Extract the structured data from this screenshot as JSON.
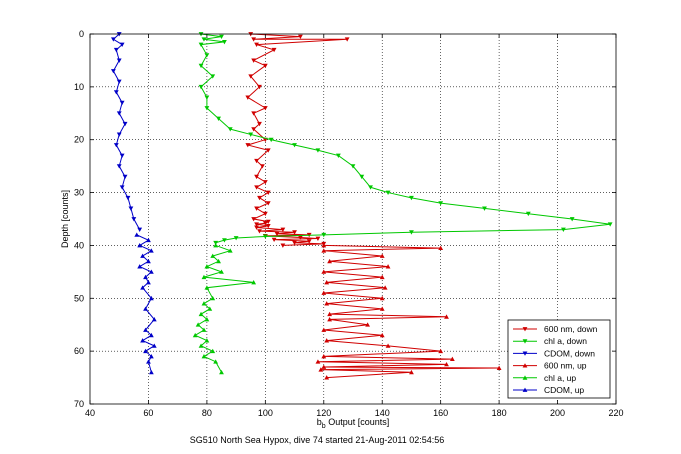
{
  "chart_data": {
    "type": "line",
    "title": "",
    "caption": "SG510 North Sea Hypox, dive 74 started 21-Aug-2011 02:54:56",
    "xlabel": "b",
    "xlabel_sub": "b",
    "xlabel_rest": " Output [counts]",
    "ylabel": "Depth [counts]",
    "xlim": [
      40,
      220
    ],
    "ylim": [
      0,
      70
    ],
    "y_reversed": true,
    "xticks": [
      40,
      60,
      80,
      100,
      120,
      140,
      160,
      180,
      200,
      220
    ],
    "yticks": [
      0,
      10,
      20,
      30,
      40,
      50,
      60,
      70
    ],
    "grid": true,
    "grid_style": "dotted",
    "legend_position": "bottom-right",
    "series": [
      {
        "name": "600 nm, down",
        "color": "#d00000",
        "marker": "v",
        "x": [
          95,
          112,
          96,
          128,
          97,
          103,
          96,
          100,
          95,
          98,
          94,
          100,
          96,
          98,
          96,
          100,
          94,
          101,
          97,
          99,
          97,
          100,
          97,
          101,
          98,
          101,
          97,
          100,
          96,
          101,
          100,
          97,
          101,
          97,
          106,
          98,
          110,
          104,
          115,
          100,
          112,
          118,
          103,
          115,
          110,
          120,
          106
        ],
        "y": [
          0,
          0.5,
          1,
          1,
          2,
          3,
          5,
          6,
          8,
          10,
          12,
          14,
          15,
          17,
          18,
          20,
          21,
          22,
          24,
          25,
          27,
          28,
          29,
          30,
          31,
          32,
          33,
          34,
          35,
          35.5,
          35.8,
          36,
          36.3,
          36.6,
          37,
          37.3,
          37.5,
          37.8,
          38,
          38.2,
          38.5,
          38.7,
          38.9,
          39.2,
          39.5,
          39.7,
          40
        ]
      },
      {
        "name": "chl a, down",
        "color": "#00c800",
        "marker": "v",
        "x": [
          78,
          85,
          79,
          86,
          78,
          80,
          78,
          82,
          78,
          80,
          80,
          84,
          88,
          95,
          102,
          110,
          118,
          125,
          130,
          133,
          136,
          142,
          150,
          160,
          175,
          190,
          205,
          218,
          202,
          150,
          120,
          100,
          90,
          86,
          83
        ],
        "y": [
          0,
          0.5,
          1,
          1.5,
          2,
          4,
          6,
          8,
          10,
          12,
          14,
          16,
          18,
          19,
          20,
          21,
          22,
          23,
          25,
          27,
          29,
          30,
          31,
          32,
          33,
          34,
          35,
          36,
          37,
          37.5,
          38,
          38.3,
          38.6,
          39,
          39.5
        ]
      },
      {
        "name": "CDOM, down",
        "color": "#0000c8",
        "marker": "v",
        "x": [
          50,
          48,
          51,
          49,
          50,
          48,
          50,
          49,
          51,
          50,
          52,
          50,
          49,
          51,
          50,
          52,
          51,
          53,
          54,
          55,
          57
        ],
        "y": [
          0,
          1,
          2,
          3,
          5,
          7,
          9,
          11,
          13,
          15,
          17,
          19,
          21,
          23,
          25,
          27,
          29,
          31,
          33,
          35,
          37
        ]
      },
      {
        "name": "600 nm, up",
        "color": "#d00000",
        "marker": "^",
        "x": [
          120,
          160,
          120,
          140,
          122,
          142,
          120,
          140,
          121,
          141,
          120,
          140,
          121,
          140,
          122,
          162,
          122,
          135,
          120,
          140,
          121,
          142,
          160,
          120,
          164,
          118,
          162,
          120,
          180,
          119,
          150,
          121
        ],
        "y": [
          40,
          40.5,
          41,
          42,
          43,
          44,
          45,
          46,
          47,
          48,
          49,
          50,
          51,
          52,
          53,
          53.5,
          54,
          55,
          56,
          57,
          58,
          59,
          60,
          61,
          61.5,
          62,
          62.5,
          63,
          63.2,
          63.5,
          64,
          65
        ]
      },
      {
        "name": "chl a, up",
        "color": "#00c800",
        "marker": "^",
        "x": [
          83,
          88,
          82,
          84,
          80,
          85,
          79,
          96,
          80,
          82,
          79,
          81,
          78,
          80,
          77,
          79,
          76,
          80,
          78,
          82,
          79,
          83,
          85
        ],
        "y": [
          40,
          41,
          42,
          43,
          44,
          45,
          46,
          47,
          48,
          50,
          51,
          52,
          53,
          54,
          55,
          56,
          57,
          58,
          59,
          60,
          61,
          62,
          64
        ]
      },
      {
        "name": "CDOM, up",
        "color": "#0000c8",
        "marker": "^",
        "x": [
          56,
          60,
          57,
          61,
          58,
          60,
          57,
          61,
          59,
          60,
          58,
          61,
          59,
          62,
          59,
          61,
          58,
          62,
          59,
          61,
          60,
          61
        ],
        "y": [
          38,
          39,
          40,
          41,
          42,
          43,
          44,
          45,
          46,
          47,
          48,
          50,
          52,
          54,
          56,
          57,
          58,
          59,
          60,
          61,
          62,
          64
        ]
      }
    ]
  }
}
